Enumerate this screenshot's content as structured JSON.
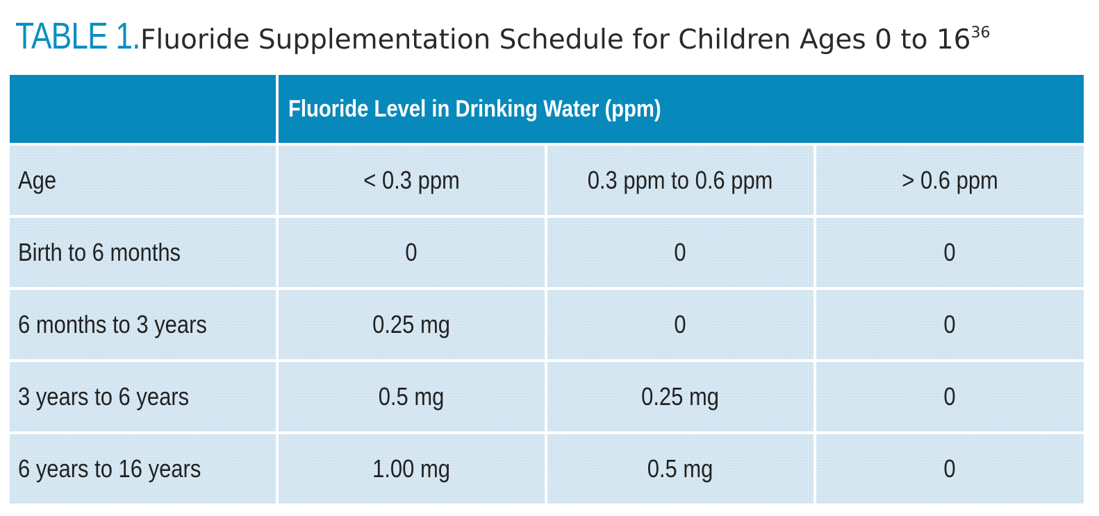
{
  "title": {
    "label": "TABLE 1.",
    "text": "Fluoride Supplementation Schedule for Children Ages 0 to 16",
    "superscript": "36"
  },
  "table": {
    "header": "Fluoride Level in Drinking Water (ppm)",
    "columns": [
      "Age",
      "< 0.3 ppm",
      "0.3 ppm to 0.6 ppm",
      "> 0.6 ppm"
    ],
    "rows": [
      [
        "Birth to 6 months",
        "0",
        "0",
        "0"
      ],
      [
        "6 months to 3 years",
        "0.25 mg",
        "0",
        "0"
      ],
      [
        "3 years to 6 years",
        "0.5 mg",
        "0.25 mg",
        "0"
      ],
      [
        "6 years to 16 years",
        "1.00 mg",
        "0.5 mg",
        "0"
      ]
    ]
  },
  "colors": {
    "accent": "#0889bb",
    "title_label": "#0a8fbf",
    "cell_background": "#d7e8f3"
  }
}
